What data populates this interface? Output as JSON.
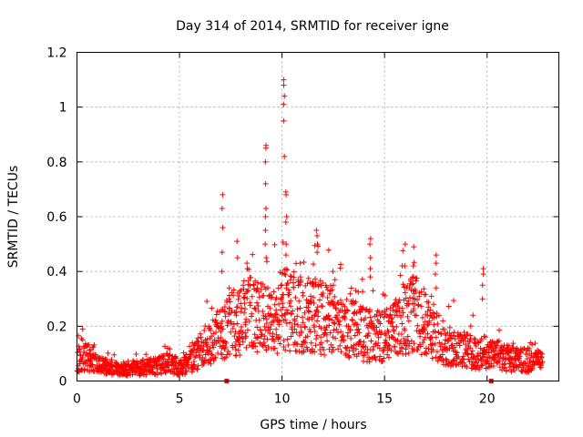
{
  "chart_data": {
    "type": "scatter",
    "title": "Day 314 of 2014, SRMTID for receiver igne",
    "xlabel": "GPS time / hours",
    "ylabel": "SRMTID / TECUs",
    "xlim": [
      0,
      23.5
    ],
    "ylim": [
      0,
      1.2
    ],
    "xticks": [
      0,
      5,
      10,
      15,
      20
    ],
    "xtick_labels": [
      "0",
      "5",
      "10",
      "15",
      "20"
    ],
    "yticks": [
      0,
      0.2,
      0.4,
      0.6,
      0.8,
      1,
      1.2
    ],
    "ytick_labels": [
      "0",
      "0.2",
      "0.4",
      "0.6",
      "0.8",
      "1",
      "1.2"
    ],
    "grid": true,
    "marker": "+",
    "color": "#ff0000",
    "x_range_of_data": [
      0,
      22.7
    ],
    "envelope": {
      "x": [
        0,
        0.3,
        0.5,
        1,
        2,
        3,
        4,
        4.5,
        5,
        5.5,
        6,
        6.5,
        7,
        7.5,
        8,
        8.5,
        9,
        9.5,
        10,
        10.5,
        11,
        11.5,
        12,
        12.5,
        13,
        13.5,
        14,
        14.5,
        15,
        15.5,
        16,
        16.5,
        17,
        17.5,
        18,
        18.5,
        19,
        19.5,
        20,
        20.5,
        21,
        21.5,
        22,
        22.7
      ],
      "y": [
        0.07,
        0.1,
        0.09,
        0.06,
        0.05,
        0.05,
        0.06,
        0.07,
        0.05,
        0.07,
        0.12,
        0.15,
        0.18,
        0.22,
        0.24,
        0.26,
        0.24,
        0.22,
        0.28,
        0.27,
        0.25,
        0.26,
        0.24,
        0.23,
        0.22,
        0.2,
        0.18,
        0.17,
        0.18,
        0.2,
        0.24,
        0.26,
        0.22,
        0.18,
        0.14,
        0.13,
        0.12,
        0.1,
        0.1,
        0.1,
        0.09,
        0.08,
        0.08,
        0.07
      ]
    },
    "spikes": [
      {
        "x": 0.3,
        "values": [
          0.19,
          0.15
        ]
      },
      {
        "x": 7.1,
        "values": [
          0.68,
          0.63,
          0.56,
          0.47,
          0.4
        ]
      },
      {
        "x": 7.4,
        "values": [
          0.34,
          0.3
        ]
      },
      {
        "x": 7.8,
        "values": [
          0.51,
          0.45
        ]
      },
      {
        "x": 8.3,
        "values": [
          0.43,
          0.41
        ]
      },
      {
        "x": 9.2,
        "values": [
          0.86,
          0.85,
          0.8,
          0.72,
          0.63,
          0.6,
          0.55,
          0.5,
          0.45
        ]
      },
      {
        "x": 10.1,
        "values": [
          1.1,
          1.08,
          1.04,
          1.01,
          0.95,
          0.82
        ]
      },
      {
        "x": 10.2,
        "values": [
          0.69,
          0.68,
          0.6,
          0.58,
          0.5,
          0.46
        ]
      },
      {
        "x": 10.9,
        "values": [
          0.43,
          0.38
        ]
      },
      {
        "x": 11.7,
        "values": [
          0.55,
          0.53,
          0.5,
          0.47
        ]
      },
      {
        "x": 12.5,
        "values": [
          0.4,
          0.35
        ]
      },
      {
        "x": 14.3,
        "values": [
          0.52,
          0.5,
          0.45,
          0.41,
          0.38
        ]
      },
      {
        "x": 16.0,
        "values": [
          0.5,
          0.42
        ]
      },
      {
        "x": 16.4,
        "values": [
          0.49,
          0.42,
          0.38,
          0.33
        ]
      },
      {
        "x": 17.5,
        "values": [
          0.46,
          0.43,
          0.39,
          0.34
        ]
      },
      {
        "x": 19.8,
        "values": [
          0.41,
          0.39,
          0.35,
          0.3
        ]
      }
    ],
    "zero_markers": [
      7.3,
      20.2
    ]
  }
}
